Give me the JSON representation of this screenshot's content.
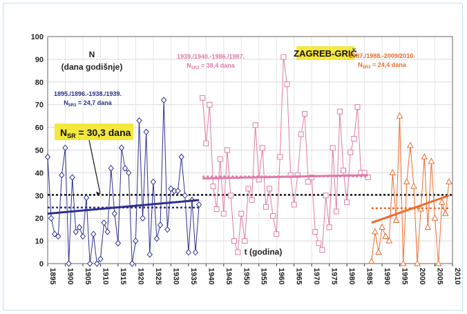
{
  "chart_data": {
    "type": "line",
    "title": "ZAGREB-GRIČ",
    "ylabel_line1": "N",
    "ylabel_line2": "(dana godišnje)",
    "xlabel": "t (godina)",
    "xlim": [
      1895,
      2010
    ],
    "ylim": [
      0,
      100
    ],
    "xticks": [
      "1895",
      "1900",
      "1905",
      "1910",
      "1915",
      "1920",
      "1925",
      "1930",
      "1935",
      "1940",
      "1945",
      "1950",
      "1955",
      "1960",
      "1965",
      "1970",
      "1975",
      "1980",
      "1985",
      "1990",
      "1995",
      "2000",
      "2005",
      "2010"
    ],
    "yticks": [
      "0",
      "10",
      "20",
      "30",
      "40",
      "50",
      "60",
      "70",
      "80",
      "90",
      "100"
    ],
    "grid": true,
    "overall_mean": {
      "label": "N",
      "sub": "SR",
      "rest": " = 30,3 dana",
      "value": 30.3
    },
    "series": [
      {
        "period_label": "1895./1896.-1938./1939.",
        "mean_label_prefix": "N",
        "mean_label_sub": "SR1",
        "mean_label_rest": " = 24,7 dana",
        "color": "#2b2f8f",
        "marker": "diamond",
        "mean": 24.7,
        "trend": [
          22,
          28
        ],
        "x": [
          1895,
          1896,
          1897,
          1898,
          1899,
          1900,
          1901,
          1902,
          1903,
          1904,
          1905,
          1906,
          1907,
          1908,
          1909,
          1910,
          1911,
          1912,
          1913,
          1914,
          1915,
          1916,
          1917,
          1918,
          1919,
          1920,
          1921,
          1922,
          1923,
          1924,
          1925,
          1926,
          1927,
          1928,
          1929,
          1930,
          1931,
          1932,
          1933,
          1934,
          1935,
          1936,
          1937,
          1938
        ],
        "y": [
          47,
          20,
          13,
          12,
          39,
          51,
          0,
          38,
          14,
          16,
          12,
          29,
          0,
          13,
          0,
          2,
          18,
          14,
          42,
          22,
          9,
          51,
          42,
          40,
          0,
          10,
          63,
          20,
          58,
          4,
          36,
          11,
          17,
          72,
          15,
          33,
          32,
          32,
          47,
          30,
          5,
          28,
          5,
          26
        ]
      },
      {
        "period_label": "1939./1940.-1986./1987.",
        "mean_label_prefix": "N",
        "mean_label_sub": "SR2",
        "mean_label_rest": " = 38,4 dana",
        "color": "#e07aa6",
        "marker": "square",
        "mean": 38.4,
        "trend": [
          37.5,
          39
        ],
        "x": [
          1939,
          1940,
          1941,
          1942,
          1943,
          1944,
          1945,
          1946,
          1947,
          1948,
          1949,
          1950,
          1951,
          1952,
          1953,
          1954,
          1955,
          1956,
          1957,
          1958,
          1959,
          1960,
          1961,
          1962,
          1963,
          1964,
          1965,
          1966,
          1967,
          1968,
          1969,
          1970,
          1971,
          1972,
          1973,
          1974,
          1975,
          1976,
          1977,
          1978,
          1979,
          1980,
          1981,
          1982,
          1983,
          1984,
          1985,
          1986
        ],
        "y": [
          73,
          53,
          70,
          34,
          24,
          46,
          22,
          50,
          30,
          10,
          5,
          22,
          10,
          33,
          28,
          61,
          37,
          51,
          25,
          33,
          21,
          13,
          47,
          91,
          79,
          39,
          26,
          39,
          57,
          66,
          36,
          38,
          14,
          9,
          6,
          30,
          16,
          51,
          23,
          67,
          41,
          27,
          49,
          55,
          69,
          40,
          40,
          38
        ]
      },
      {
        "period_label": "1987./1988.-2009/2010.",
        "mean_label_prefix": "N",
        "mean_label_sub": "SR3",
        "mean_label_rest": " = 24,4 dana",
        "color": "#ef6a2c",
        "marker": "triangle",
        "mean": 24.4,
        "trend": [
          18,
          30
        ],
        "x": [
          1987,
          1988,
          1989,
          1990,
          1991,
          1992,
          1993,
          1994,
          1995,
          1996,
          1997,
          1998,
          1999,
          2000,
          2001,
          2002,
          2003,
          2004,
          2005,
          2006,
          2007,
          2008,
          2009
        ],
        "y": [
          1,
          14,
          5,
          16,
          12,
          10,
          40,
          19,
          65,
          0,
          36,
          52,
          34,
          0,
          24,
          47,
          16,
          45,
          20,
          0,
          27,
          22,
          36
        ]
      }
    ]
  }
}
